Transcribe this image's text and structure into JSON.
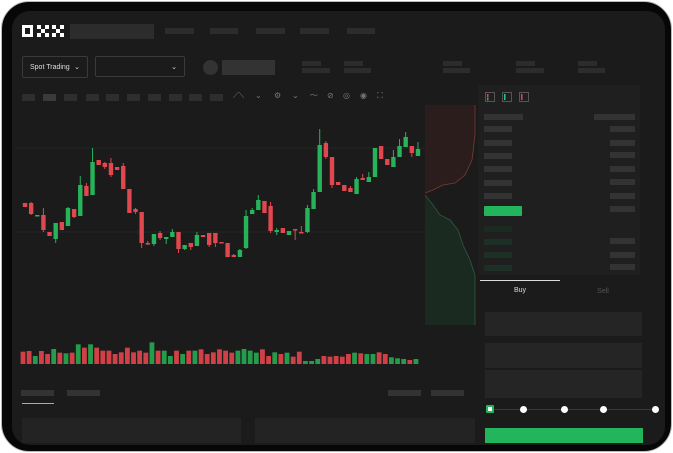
{
  "header": {
    "logo": "OKX"
  },
  "market_selector": {
    "label": "Spot Trading",
    "arrow": "chevron-down-icon"
  },
  "pair_selector": {
    "arrow": "chevron-down-icon"
  },
  "orderbook": {
    "icons": [
      "orderbook-both-icon",
      "orderbook-bids-icon",
      "orderbook-asks-icon"
    ]
  },
  "trade_form": {
    "tabs": [
      {
        "label": "Buy",
        "active": true
      },
      {
        "label": "Sell",
        "active": false
      }
    ],
    "slider_value_percent": 0,
    "slider_marks": [
      0,
      25,
      50,
      75,
      100
    ]
  },
  "colors": {
    "up": "#26b35a",
    "down": "#e0474f",
    "background": "#1b1b1b",
    "accent": "#22b55c"
  },
  "chart_data": {
    "type": "candlestick",
    "ohlc": [
      [
        97,
        97,
        93,
        93
      ],
      [
        97,
        98,
        85,
        86
      ],
      [
        84,
        85,
        84,
        85
      ],
      [
        85,
        92,
        68,
        70
      ],
      [
        68,
        68,
        64,
        64
      ],
      [
        61,
        77,
        57,
        77
      ],
      [
        78,
        78,
        70,
        70
      ],
      [
        74,
        93,
        74,
        92
      ],
      [
        91,
        91,
        82,
        83
      ],
      [
        84,
        124,
        84,
        115
      ],
      [
        114,
        117,
        104,
        104
      ],
      [
        105,
        152,
        105,
        138
      ],
      [
        140,
        140,
        135,
        135
      ],
      [
        137,
        138,
        131,
        133
      ],
      [
        137,
        142,
        123,
        125
      ],
      [
        133,
        133,
        130,
        130
      ],
      [
        134,
        137,
        111,
        111
      ],
      [
        111,
        111,
        87,
        87
      ],
      [
        91,
        92,
        86,
        88
      ],
      [
        88,
        88,
        52,
        57
      ],
      [
        57,
        59,
        55,
        56
      ],
      [
        56,
        66,
        54,
        66
      ],
      [
        67,
        69,
        60,
        62
      ],
      [
        61,
        63,
        56,
        63
      ],
      [
        63,
        71,
        63,
        68
      ],
      [
        68,
        68,
        47,
        51
      ],
      [
        51,
        55,
        50,
        55
      ],
      [
        57,
        57,
        50,
        53
      ],
      [
        54,
        68,
        54,
        65
      ],
      [
        65,
        65,
        63,
        63
      ],
      [
        67,
        67,
        53,
        55
      ],
      [
        67,
        67,
        53,
        57
      ],
      [
        58,
        58,
        57,
        57
      ],
      [
        57,
        57,
        43,
        43
      ],
      [
        45,
        46,
        43,
        43
      ],
      [
        43,
        51,
        43,
        50
      ],
      [
        52,
        90,
        51,
        84
      ],
      [
        86,
        92,
        86,
        90
      ],
      [
        90,
        105,
        90,
        100
      ],
      [
        99,
        99,
        87,
        87
      ],
      [
        94,
        98,
        67,
        69
      ],
      [
        68,
        72,
        65,
        70
      ],
      [
        72,
        72,
        67,
        67
      ],
      [
        65,
        69,
        65,
        69
      ],
      [
        71,
        71,
        60,
        70
      ],
      [
        68,
        74,
        67,
        67
      ],
      [
        68,
        95,
        67,
        92
      ],
      [
        91,
        111,
        91,
        108
      ],
      [
        108,
        171,
        108,
        155
      ],
      [
        157,
        159,
        141,
        143
      ],
      [
        143,
        143,
        112,
        115
      ],
      [
        118,
        118,
        115,
        115
      ],
      [
        115,
        115,
        109,
        109
      ],
      [
        112,
        114,
        108,
        108
      ],
      [
        106,
        123,
        106,
        121
      ],
      [
        122,
        126,
        120,
        120
      ],
      [
        118,
        128,
        118,
        123
      ],
      [
        123,
        152,
        123,
        152
      ],
      [
        154,
        154,
        141,
        141
      ],
      [
        141,
        141,
        135,
        135
      ],
      [
        133,
        150,
        133,
        143
      ],
      [
        143,
        161,
        143,
        154
      ],
      [
        153,
        168,
        153,
        163
      ],
      [
        154,
        154,
        143,
        147
      ],
      [
        144,
        158,
        144,
        151
      ]
    ],
    "volume": [
      37,
      39,
      24,
      39,
      30,
      45,
      34,
      32,
      34,
      59,
      49,
      59,
      49,
      40,
      40,
      30,
      35,
      49,
      35,
      40,
      34,
      65,
      40,
      40,
      24,
      40,
      30,
      40,
      40,
      44,
      30,
      35,
      44,
      40,
      34,
      40,
      45,
      40,
      34,
      44,
      24,
      35,
      30,
      34,
      22,
      37,
      9,
      9,
      15,
      24,
      22,
      24,
      22,
      30,
      34,
      32,
      30,
      30,
      35,
      30,
      20,
      17,
      15,
      12,
      15
    ],
    "grid": true
  }
}
